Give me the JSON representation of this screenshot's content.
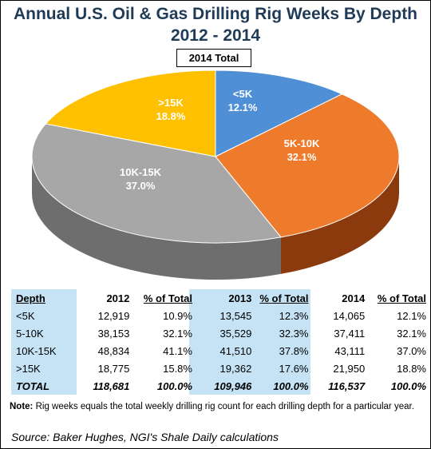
{
  "title_line1": "Annual U.S. Oil & Gas Drilling Rig Weeks By Depth",
  "title_line2": "2012 - 2014",
  "chart_data": {
    "type": "pie",
    "title": "2014 Total",
    "slices": [
      {
        "label": "<5K",
        "value": 12.1,
        "pct_label": "12.1%",
        "color": "#4f8fd6",
        "side_color": "#3467a3"
      },
      {
        "label": "5K-10K",
        "value": 32.1,
        "pct_label": "32.1%",
        "color": "#ee7a2b",
        "side_color": "#8a3a0c"
      },
      {
        "label": "10K-15K",
        "value": 37.0,
        "pct_label": "37.0%",
        "color": "#a7a7a7",
        "side_color": "#6e6e6e"
      },
      {
        "label": ">15K",
        "value": 18.8,
        "pct_label": "18.8%",
        "color": "#ffc000",
        "side_color": "#b78a00"
      }
    ]
  },
  "table": {
    "header": [
      "Depth",
      "2012",
      "% of Total",
      "2013",
      "% of Total",
      "2014",
      "% of Total"
    ],
    "rows": [
      [
        "<5K",
        "12,919",
        "10.9%",
        "13,545",
        "12.3%",
        "14,065",
        "12.1%"
      ],
      [
        "5-10K",
        "38,153",
        "32.1%",
        "35,529",
        "32.3%",
        "37,411",
        "32.1%"
      ],
      [
        "10K-15K",
        "48,834",
        "41.1%",
        "41,510",
        "37.8%",
        "43,111",
        "37.0%"
      ],
      [
        ">15K",
        "18,775",
        "15.8%",
        "19,362",
        "17.6%",
        "21,950",
        "18.8%"
      ]
    ],
    "total": [
      "TOTAL",
      "118,681",
      "100.0%",
      "109,946",
      "100.0%",
      "116,537",
      "100.0%"
    ],
    "highlight_color": "#c5e3f5"
  },
  "note_label": "Note:",
  "note_text": " Rig weeks equals the total weekly drilling rig count for each drilling depth for a particular year.",
  "source": "Source: Baker Hughes, NGI's Shale Daily calculations"
}
